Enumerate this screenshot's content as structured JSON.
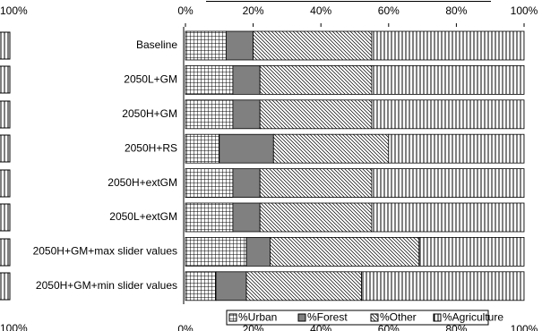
{
  "chart_data": {
    "type": "stacked-barh",
    "categories": [
      "Baseline",
      "2050L+GM",
      "2050H+GM",
      "2050H+RS",
      "2050H+extGM",
      "2050L+extGM",
      "2050H+GM+max slider values",
      "2050H+GM+min slider values"
    ],
    "series": [
      {
        "name": "%Urban",
        "color": "#000000",
        "pattern": "grid",
        "values": [
          12,
          14,
          14,
          10,
          14,
          14,
          18,
          9
        ]
      },
      {
        "name": "%Forest",
        "color": "#808080",
        "pattern": "solid",
        "values": [
          8,
          8,
          8,
          16,
          8,
          8,
          7,
          9
        ]
      },
      {
        "name": "%Other",
        "color": "#000000",
        "pattern": "diagonal",
        "values": [
          35,
          33,
          33,
          34,
          33,
          33,
          44,
          34
        ]
      },
      {
        "name": "%Agriculture",
        "color": "#000000",
        "pattern": "vertical",
        "values": [
          45,
          45,
          45,
          40,
          45,
          45,
          31,
          48
        ]
      }
    ],
    "xlim": [
      0,
      100
    ],
    "xticks": [
      {
        "value": 0,
        "label": "0%"
      },
      {
        "value": 20,
        "label": "20%"
      },
      {
        "value": 40,
        "label": "40%"
      },
      {
        "value": 60,
        "label": "60%"
      },
      {
        "value": 80,
        "label": "80%"
      },
      {
        "value": 100,
        "label": "100%"
      }
    ],
    "legend": "bottom"
  },
  "left_fragment_labels": [
    "100%",
    "100%"
  ]
}
